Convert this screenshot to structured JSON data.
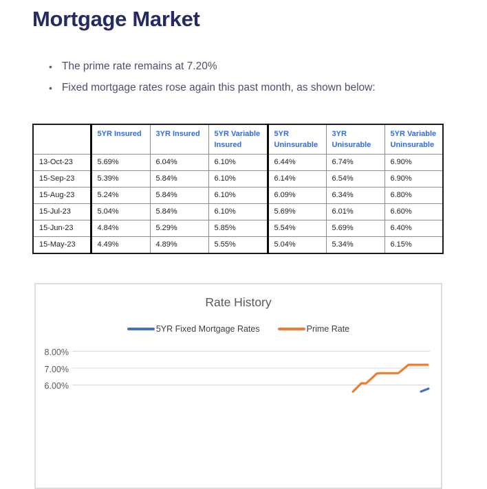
{
  "colors": {
    "heading": "#252A63",
    "body_text": "#4C4F68",
    "table_header_text": "#2F6CE3",
    "table_cell_text": "#1F1F1F",
    "series_blue": "#4472C4",
    "series_orange": "#ED7D31",
    "chart_text": "#595959"
  },
  "header": {
    "title": "Mortgage Market"
  },
  "bullets": [
    {
      "text": "The prime rate remains at 7.20%"
    },
    {
      "text": "Fixed mortgage rates rose again this past month, as shown below:"
    }
  ],
  "rates_table": {
    "columns": [
      "",
      "5YR Insured",
      "3YR Insured",
      "5YR Variable Insured",
      "5YR Uninsurable",
      "3YR Unisurable",
      "5YR Variable Uninsurable"
    ],
    "rows": [
      {
        "date": "13-Oct-23",
        "values": [
          "5.69%",
          "6.04%",
          "6.10%",
          "6.44%",
          "6.74%",
          "6.90%"
        ]
      },
      {
        "date": "15-Sep-23",
        "values": [
          "5.39%",
          "5.84%",
          "6.10%",
          "6.14%",
          "6.54%",
          "6.90%"
        ]
      },
      {
        "date": "15-Aug-23",
        "values": [
          "5.24%",
          "5.84%",
          "6.10%",
          "6.09%",
          "6.34%",
          "6.80%"
        ]
      },
      {
        "date": "15-Jul-23",
        "values": [
          "5.04%",
          "5.84%",
          "6.10%",
          "5.69%",
          "6.01%",
          "6.60%"
        ]
      },
      {
        "date": "15-Jun-23",
        "values": [
          "4.84%",
          "5.29%",
          "5.85%",
          "5.54%",
          "5.69%",
          "6.40%"
        ]
      },
      {
        "date": "15-May-23",
        "values": [
          "4.49%",
          "4.89%",
          "5.55%",
          "5.04%",
          "5.34%",
          "6.15%"
        ]
      }
    ]
  },
  "chart_data": {
    "type": "line",
    "title": "Rate History",
    "legend_position": "top-center",
    "grid": true,
    "y_tick_labels": [
      "8.00%",
      "7.00%",
      "6.00%"
    ],
    "gridline_values": [
      8,
      7,
      6
    ],
    "y_axis_visible_range": [
      5.6,
      8.4
    ],
    "cropped": "bottom portion of chart cut off at screenshot edge",
    "series": [
      {
        "name": "5YR Fixed Mortgage Rates",
        "color": "#4472C4",
        "visible_points": [
          {
            "x_frac": 0.975,
            "pct": 5.61
          },
          {
            "x_frac": 0.996,
            "pct": 5.78
          }
        ]
      },
      {
        "name": "Prime Rate",
        "color": "#ED7D31",
        "visible_points": [
          {
            "x_frac": 0.785,
            "pct": 5.6
          },
          {
            "x_frac": 0.808,
            "pct": 6.1
          },
          {
            "x_frac": 0.822,
            "pct": 6.1
          },
          {
            "x_frac": 0.852,
            "pct": 6.68
          },
          {
            "x_frac": 0.862,
            "pct": 6.7
          },
          {
            "x_frac": 0.912,
            "pct": 6.7
          },
          {
            "x_frac": 0.94,
            "pct": 7.2
          },
          {
            "x_frac": 0.994,
            "pct": 7.2
          }
        ]
      }
    ]
  }
}
